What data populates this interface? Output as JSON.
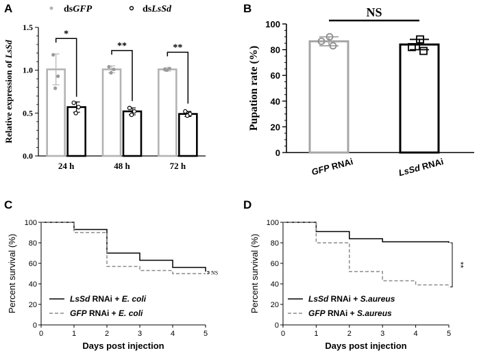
{
  "chart_data": [
    {
      "panel": "A",
      "type": "bar",
      "ylabel_prefix": "Relative expression of ",
      "ylabel_gene": "LsSd",
      "ylim": [
        0,
        1.5
      ],
      "yticks": [
        "0.0",
        "0.5",
        "1.0",
        "1.5"
      ],
      "categories": [
        "24 h",
        "48 h",
        "72 h"
      ],
      "legend": [
        {
          "prefix": "ds",
          "gene": "GFP"
        },
        {
          "prefix": "ds",
          "gene": "LsSd"
        }
      ],
      "series": [
        {
          "name": "dsGFP",
          "color": "#b3b3b3",
          "values": [
            1.01,
            1.01,
            1.01
          ],
          "errors": [
            0.18,
            0.04,
            0.02
          ],
          "points": [
            [
              1.18,
              0.93,
              0.79
            ],
            [
              1.04,
              1.01,
              0.97
            ],
            [
              1.01,
              1.02,
              1.0
            ]
          ]
        },
        {
          "name": "dsLsSd",
          "color": "#000000",
          "values": [
            0.57,
            0.52,
            0.49
          ],
          "errors": [
            0.06,
            0.04,
            0.03
          ],
          "points": [
            [
              0.62,
              0.57,
              0.5
            ],
            [
              0.56,
              0.52,
              0.48
            ],
            [
              0.52,
              0.49,
              0.47
            ]
          ]
        }
      ],
      "significance": [
        "*",
        "**",
        "**"
      ]
    },
    {
      "panel": "B",
      "type": "bar",
      "ylabel": "Pupation rate (%)",
      "ylim": [
        0,
        100
      ],
      "yticks": [
        "0",
        "20",
        "40",
        "60",
        "80",
        "100"
      ],
      "categories": [
        {
          "gene": "GFP",
          "suffix": " RNAi"
        },
        {
          "gene": "LsSd",
          "suffix": " RNAi"
        }
      ],
      "values": [
        86.5,
        84
      ],
      "errors": [
        3.5,
        4
      ],
      "colors": [
        "#a6a6a6",
        "#000000"
      ],
      "points": [
        [
          90,
          86.5,
          83
        ],
        [
          88,
          82,
          79
        ]
      ],
      "significance": "NS"
    },
    {
      "panel": "C",
      "type": "line",
      "ylabel": "Percent survival (%)",
      "xlabel": "Days post injection",
      "xlim": [
        0,
        5
      ],
      "ylim": [
        0,
        100
      ],
      "xticks": [
        "0",
        "1",
        "2",
        "3",
        "4",
        "5"
      ],
      "yticks": [
        "0",
        "20",
        "40",
        "60",
        "80",
        "100"
      ],
      "series": [
        {
          "name": "LsSd RNAi + E. coli",
          "gene": "LsSd",
          "mid": " RNAi + ",
          "pathogen": "E. coli",
          "style": "solid",
          "x": [
            0,
            1,
            2,
            3,
            4,
            5
          ],
          "y": [
            100,
            93,
            70,
            63,
            56,
            52
          ]
        },
        {
          "name": "GFP RNAi + E. coli",
          "gene": "GFP",
          "mid": " RNAi + ",
          "pathogen": "E. coli",
          "style": "dashed",
          "x": [
            0,
            1,
            2,
            3,
            4,
            5
          ],
          "y": [
            100,
            90,
            57,
            53,
            50,
            50
          ]
        }
      ],
      "significance": "NS"
    },
    {
      "panel": "D",
      "type": "line",
      "ylabel": "Percent survival (%)",
      "xlabel": "Days post injection",
      "xlim": [
        0,
        5
      ],
      "ylim": [
        0,
        100
      ],
      "xticks": [
        "0",
        "1",
        "2",
        "3",
        "4",
        "5"
      ],
      "yticks": [
        "0",
        "20",
        "40",
        "60",
        "80",
        "100"
      ],
      "series": [
        {
          "name": "LsSd RNAi + S.aureus",
          "gene": "LsSd",
          "mid": " RNAi + ",
          "pathogen": "S.aureus",
          "style": "solid",
          "x": [
            0,
            1,
            2,
            3,
            4,
            5
          ],
          "y": [
            100,
            91,
            84,
            81,
            81,
            80
          ]
        },
        {
          "name": "GFP RNAi + S.aureus",
          "gene": "GFP",
          "mid": " RNAi + ",
          "pathogen": "S.aureus",
          "style": "dashed",
          "x": [
            0,
            1,
            2,
            3,
            4,
            5
          ],
          "y": [
            100,
            80,
            52,
            43,
            39,
            37
          ]
        }
      ],
      "significance": "**"
    }
  ]
}
